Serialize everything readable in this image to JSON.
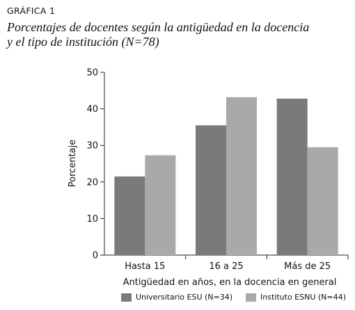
{
  "figure": {
    "label": "GRÁFICA 1",
    "title_line1": "Porcentajes de docentes según la antigüedad en la docencia",
    "title_line2": "y el tipo de institución (N=78)"
  },
  "chart_data": {
    "type": "bar",
    "categories": [
      "Hasta 15",
      "16 a 25",
      "Más de 25"
    ],
    "series": [
      {
        "name": "Universitario ESU (N=34)",
        "values": [
          21.5,
          35.5,
          42.8
        ],
        "color": "#7a7a7c"
      },
      {
        "name": "Instituto ESNU (N=44)",
        "values": [
          27.3,
          43.2,
          29.5
        ],
        "color": "#a9a9ab"
      }
    ],
    "xlabel": "Antigüedad en años, en la docencia en general",
    "ylabel": "Porcentaje",
    "ylim": [
      0,
      50
    ],
    "yticks": [
      0,
      10,
      20,
      30,
      40,
      50
    ],
    "grid": false,
    "legend_position": "bottom"
  }
}
